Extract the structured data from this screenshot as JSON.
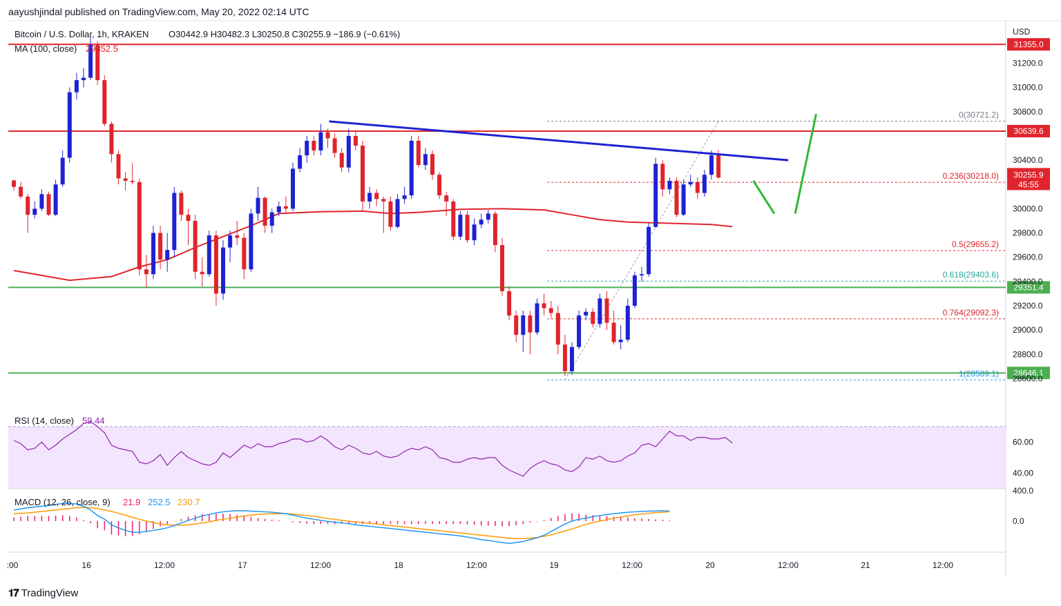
{
  "header": {
    "publisher": "aayushjindal published on TradingView.com, May 20, 2022 02:14 UTC"
  },
  "footer": {
    "logo_text": "TradingView"
  },
  "legend": {
    "symbol": "Bitcoin / U.S. Dollar, 1h, KRAKEN",
    "ohlc": "O30442.9  H30482.3  L30250.8  C30255.9  −186.9 (−0.61%)",
    "ma_label": "MA (100, close)",
    "ma_value": "29852.5",
    "rsi_label": "RSI (14, close)",
    "rsi_value": "59.44",
    "macd_label": "MACD (12, 26, close, 9)",
    "macd_hist": "21.9",
    "macd_line": "252.5",
    "macd_signal": "230.7"
  },
  "colors": {
    "up": "#1e22d2",
    "down": "#e0242c",
    "ma": "#e0242c",
    "resistance": "#e0242c",
    "support": "#4caf50",
    "trendline": "#1e22d2",
    "projection": "#2eb82e",
    "rsi": "#8e24aa",
    "rsi_band": "#f3e5fd",
    "macd": "#2196f3",
    "signal": "#ff9800",
    "hist": "#e91e63"
  },
  "chart_data": {
    "type": "candlestick",
    "title": "Bitcoin / U.S. Dollar, 1h, KRAKEN",
    "currency_label": "USD",
    "ylim": [
      28500,
      31550
    ],
    "y_ticks": [
      "31200.0",
      "31000.0",
      "30800.0",
      "30400.0",
      "30000.0",
      "29800.0",
      "29600.0",
      "29400.0",
      "29200.0",
      "29000.0",
      "28800.0",
      "28600.0"
    ],
    "x_ticks": [
      ":00",
      "16",
      "12:00",
      "17",
      "12:00",
      "18",
      "12:00",
      "19",
      "12:00",
      "20",
      "12:00",
      "21",
      "12:00"
    ],
    "candles": [
      [
        30233,
        30180,
        30240,
        30150
      ],
      [
        30180,
        30100,
        30220,
        30080
      ],
      [
        30100,
        29950,
        30120,
        29800
      ],
      [
        29950,
        30000,
        30060,
        29920
      ],
      [
        30000,
        30120,
        30160,
        29980
      ],
      [
        30120,
        29950,
        30140,
        29940
      ],
      [
        29950,
        30200,
        30240,
        29940
      ],
      [
        30200,
        30420,
        30480,
        30180
      ],
      [
        30420,
        30960,
        31000,
        30380
      ],
      [
        30960,
        31060,
        31120,
        30900
      ],
      [
        31060,
        31080,
        31160,
        31000
      ],
      [
        31080,
        31350,
        31420,
        31060
      ],
      [
        31350,
        31060,
        31380,
        31020
      ],
      [
        31060,
        30700,
        31100,
        30680
      ],
      [
        30700,
        30450,
        30720,
        30380
      ],
      [
        30450,
        30250,
        30480,
        30200
      ],
      [
        30250,
        30230,
        30300,
        30150
      ],
      [
        30230,
        30220,
        30380,
        30200
      ],
      [
        30220,
        29500,
        30250,
        29450
      ],
      [
        29500,
        29460,
        29620,
        29350
      ],
      [
        29460,
        29800,
        29860,
        29420
      ],
      [
        29800,
        29580,
        29860,
        29500
      ],
      [
        29580,
        29660,
        29800,
        29480
      ],
      [
        29660,
        30130,
        30180,
        29600
      ],
      [
        30130,
        29950,
        30150,
        29900
      ],
      [
        29950,
        29900,
        30000,
        29700
      ],
      [
        29900,
        29480,
        29950,
        29420
      ],
      [
        29480,
        29460,
        29600,
        29360
      ],
      [
        29460,
        29780,
        29820,
        29440
      ],
      [
        29780,
        29300,
        29820,
        29200
      ],
      [
        29300,
        29680,
        29740,
        29250
      ],
      [
        29680,
        29780,
        29820,
        29560
      ],
      [
        29780,
        29760,
        29900,
        29700
      ],
      [
        29760,
        29500,
        29800,
        29420
      ],
      [
        29500,
        29960,
        30000,
        29480
      ],
      [
        29960,
        30090,
        30180,
        29900
      ],
      [
        30090,
        29860,
        30100,
        29800
      ],
      [
        29860,
        29970,
        30000,
        29800
      ],
      [
        29970,
        30020,
        30060,
        29940
      ],
      [
        30020,
        30000,
        30100,
        29960
      ],
      [
        30000,
        30330,
        30380,
        29980
      ],
      [
        30330,
        30440,
        30500,
        30300
      ],
      [
        30440,
        30560,
        30600,
        30380
      ],
      [
        30560,
        30480,
        30600,
        30440
      ],
      [
        30480,
        30630,
        30700,
        30440
      ],
      [
        30630,
        30580,
        30660,
        30500
      ],
      [
        30580,
        30460,
        30620,
        30420
      ],
      [
        30460,
        30340,
        30500,
        30300
      ],
      [
        30340,
        30600,
        30660,
        30300
      ],
      [
        30600,
        30520,
        30640,
        30480
      ],
      [
        30520,
        30060,
        30560,
        29980
      ],
      [
        30060,
        30130,
        30180,
        30000
      ],
      [
        30130,
        30080,
        30160,
        30020
      ],
      [
        30080,
        30060,
        30100,
        29800
      ],
      [
        30060,
        29850,
        30100,
        29820
      ],
      [
        29850,
        30080,
        30120,
        29840
      ],
      [
        30080,
        30110,
        30180,
        30040
      ],
      [
        30110,
        30560,
        30600,
        30080
      ],
      [
        30560,
        30360,
        30600,
        30340
      ],
      [
        30360,
        30450,
        30500,
        30320
      ],
      [
        30450,
        30280,
        30480,
        30240
      ],
      [
        30280,
        30110,
        30300,
        30080
      ],
      [
        30110,
        30060,
        30140,
        29940
      ],
      [
        30060,
        29770,
        30080,
        29740
      ],
      [
        29770,
        29950,
        29980,
        29740
      ],
      [
        29950,
        29740,
        29980,
        29720
      ],
      [
        29740,
        29870,
        29920,
        29700
      ],
      [
        29870,
        29910,
        29960,
        29840
      ],
      [
        29910,
        29960,
        29990,
        29880
      ],
      [
        29960,
        29700,
        29980,
        29640
      ],
      [
        29700,
        29320,
        29760,
        29280
      ],
      [
        29320,
        29120,
        29360,
        29080
      ],
      [
        29120,
        28960,
        29160,
        28900
      ],
      [
        28960,
        29120,
        29160,
        28820
      ],
      [
        29120,
        28980,
        29160,
        28800
      ],
      [
        28980,
        29220,
        29260,
        28960
      ],
      [
        29220,
        29180,
        29300,
        29120
      ],
      [
        29180,
        29140,
        29240,
        29100
      ],
      [
        29140,
        28880,
        29200,
        28800
      ],
      [
        28880,
        28660,
        28960,
        28620
      ],
      [
        28660,
        28860,
        28900,
        28630
      ],
      [
        28860,
        29120,
        29160,
        28840
      ],
      [
        29120,
        29150,
        29180,
        29080
      ],
      [
        29150,
        29050,
        29180,
        29020
      ],
      [
        29050,
        29260,
        29300,
        29020
      ],
      [
        29260,
        29060,
        29320,
        29000
      ],
      [
        29060,
        28900,
        29160,
        28880
      ],
      [
        28900,
        28920,
        29040,
        28840
      ],
      [
        28920,
        29200,
        29260,
        28900
      ],
      [
        29200,
        29450,
        29480,
        29180
      ],
      [
        29450,
        29460,
        29520,
        29400
      ],
      [
        29460,
        29850,
        29880,
        29440
      ],
      [
        29850,
        30370,
        30420,
        29840
      ],
      [
        30370,
        30160,
        30400,
        30100
      ],
      [
        30160,
        30230,
        30260,
        30120
      ],
      [
        30230,
        29950,
        30260,
        29930
      ],
      [
        29950,
        30200,
        30240,
        29940
      ],
      [
        30200,
        30220,
        30280,
        30180
      ],
      [
        30220,
        30130,
        30260,
        30080
      ],
      [
        30130,
        30280,
        30320,
        30100
      ],
      [
        30280,
        30440,
        30480,
        30240
      ],
      [
        30440,
        30256,
        30482,
        30250
      ]
    ],
    "ma100": [
      [
        0,
        29490
      ],
      [
        8,
        29410
      ],
      [
        14,
        29440
      ],
      [
        18,
        29520
      ],
      [
        22,
        29580
      ],
      [
        26,
        29680
      ],
      [
        30,
        29770
      ],
      [
        34,
        29860
      ],
      [
        38,
        29960
      ],
      [
        44,
        29975
      ],
      [
        50,
        29980
      ],
      [
        54,
        29960
      ],
      [
        58,
        29970
      ],
      [
        64,
        29995
      ],
      [
        70,
        30000
      ],
      [
        76,
        29990
      ],
      [
        80,
        29950
      ],
      [
        84,
        29910
      ],
      [
        88,
        29890
      ],
      [
        94,
        29880
      ],
      [
        100,
        29870
      ],
      [
        103,
        29852
      ]
    ],
    "resistance_levels": [
      {
        "value": 31355.0,
        "label": "31355.0"
      },
      {
        "value": 30639.6,
        "label": "30639.6"
      }
    ],
    "support_levels": [
      {
        "value": 29351.4,
        "label": "29351.4"
      },
      {
        "value": 28646.1,
        "label": "28646.1"
      }
    ],
    "current_price": {
      "label": "30255.9",
      "countdown": "45:55"
    },
    "fib_levels": [
      {
        "value": 30721.2,
        "label": "0(30721.2)"
      },
      {
        "value": 30218.0,
        "label": "0.236(30218.0)"
      },
      {
        "value": 29655.2,
        "label": "0.5(29655.2)"
      },
      {
        "value": 29403.6,
        "label": "0.618(29403.6)"
      },
      {
        "value": 29092.3,
        "label": "0.764(29092.3)"
      },
      {
        "value": 28589.1,
        "label": "1(28589.1)"
      }
    ],
    "trendline": [
      [
        45,
        30720
      ],
      [
        111,
        30400
      ]
    ],
    "projection": [
      [
        106,
        30230
      ],
      [
        109,
        29960
      ],
      [
        112,
        29960
      ],
      [
        115,
        30780
      ]
    ],
    "rsi": {
      "ylim": [
        30,
        78
      ],
      "ticks": [
        "60.00",
        "40.00"
      ],
      "band": [
        70,
        30
      ],
      "values": [
        61,
        59,
        55,
        56,
        60,
        55,
        58,
        62,
        65,
        68,
        72,
        73,
        70,
        66,
        58,
        56,
        55,
        54,
        47,
        46,
        48,
        52,
        45,
        50,
        54,
        50,
        48,
        46,
        45,
        47,
        53,
        50,
        54,
        58,
        56,
        59,
        57,
        57,
        59,
        60,
        62,
        62,
        60,
        61,
        64,
        61,
        57,
        55,
        58,
        56,
        53,
        52,
        54,
        51,
        50,
        51,
        54,
        56,
        55,
        57,
        55,
        50,
        49,
        47,
        47,
        49,
        50,
        49,
        50,
        50,
        45,
        42,
        40,
        38,
        43,
        46,
        48,
        46,
        45,
        42,
        41,
        44,
        50,
        49,
        51,
        48,
        47,
        48,
        51,
        53,
        58,
        59,
        57,
        62,
        67,
        64,
        64,
        61,
        63,
        63,
        62,
        62,
        63,
        59.44
      ]
    },
    "macd": {
      "ylim": [
        -80,
        80
      ],
      "ticks": [
        "400.0",
        "0.0"
      ],
      "macd_values": [
        30,
        33,
        36,
        38,
        40,
        42,
        45,
        48,
        48,
        46,
        40,
        30,
        15,
        5,
        -10,
        -18,
        -25,
        -30,
        -30,
        -28,
        -25,
        -22,
        -18,
        -12,
        -5,
        2,
        8,
        14,
        18,
        22,
        25,
        27,
        28,
        28,
        27,
        26,
        25,
        24,
        22,
        20,
        16,
        12,
        8,
        5,
        2,
        -1,
        -3,
        -5,
        -7,
        -10,
        -12,
        -14,
        -16,
        -18,
        -20,
        -22,
        -24,
        -26,
        -28,
        -30,
        -32,
        -34,
        -36,
        -38,
        -40,
        -43,
        -46,
        -50,
        -52,
        -55,
        -58,
        -60,
        -58,
        -55,
        -50,
        -45,
        -38,
        -28,
        -18,
        -8,
        0,
        5,
        8,
        12,
        15,
        18,
        20,
        22,
        24,
        25,
        26,
        27,
        27.5,
        28,
        27
      ],
      "signal_values": [
        20,
        21,
        22,
        24,
        26,
        28,
        30,
        32,
        34,
        36,
        37,
        36,
        34,
        30,
        26,
        21,
        16,
        10,
        5,
        0,
        -4,
        -8,
        -10,
        -11,
        -11,
        -10,
        -8,
        -5,
        -2,
        2,
        5,
        8,
        11,
        14,
        16,
        18,
        19,
        20,
        20,
        20,
        19,
        17,
        15,
        13,
        10,
        7,
        5,
        2,
        0,
        -2,
        -4,
        -6,
        -8,
        -10,
        -12,
        -14,
        -16,
        -18,
        -20,
        -22,
        -24,
        -26,
        -28,
        -30,
        -32,
        -34,
        -36,
        -38,
        -40,
        -42,
        -44,
        -46,
        -47,
        -47,
        -46,
        -44,
        -41,
        -37,
        -32,
        -27,
        -21,
        -15,
        -9,
        -4,
        0,
        4,
        8,
        11,
        14,
        17,
        19,
        21,
        23,
        24,
        25
      ],
      "hist_values": [
        10,
        12,
        14,
        14,
        14,
        14,
        15,
        16,
        14,
        10,
        3,
        -6,
        -19,
        -25,
        -36,
        -39,
        -41,
        -40,
        -35,
        -28,
        -21,
        -14,
        -8,
        -1,
        6,
        12,
        16,
        19,
        20,
        20,
        20,
        19,
        17,
        14,
        11,
        8,
        6,
        4,
        2,
        0,
        -3,
        -5,
        -7,
        -8,
        -8,
        -8,
        -8,
        -7,
        -7,
        -8,
        -8,
        -8,
        -8,
        -8,
        -8,
        -8,
        -8,
        -8,
        -8,
        -8,
        -8,
        -8,
        -8,
        -8,
        -8,
        -9,
        -10,
        -12,
        -12,
        -13,
        -14,
        -14,
        -11,
        -8,
        -4,
        -1,
        3,
        9,
        14,
        19,
        21,
        20,
        17,
        16,
        15,
        14,
        12,
        11,
        10,
        8,
        7,
        6,
        4.5,
        4,
        2
      ]
    }
  }
}
